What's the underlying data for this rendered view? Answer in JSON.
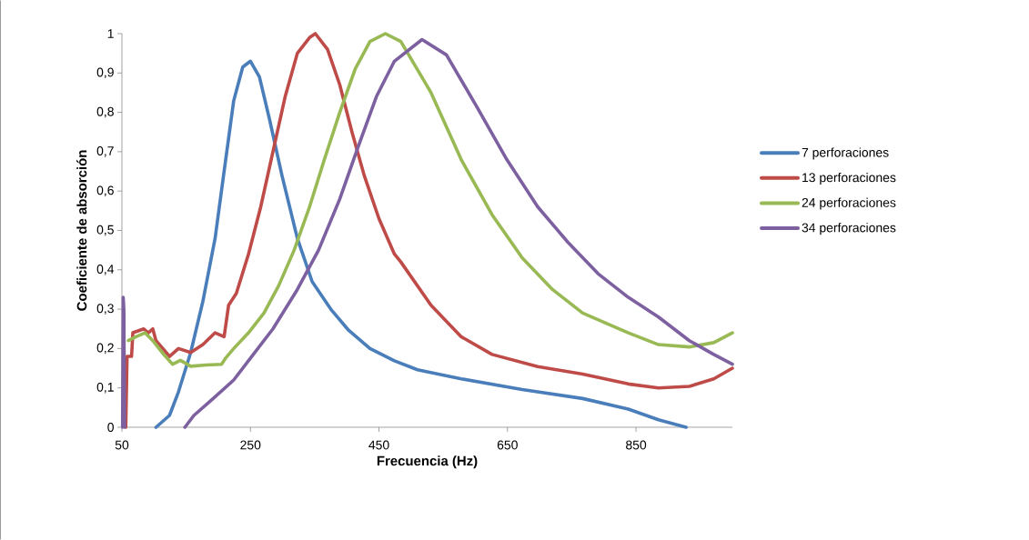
{
  "chart_data": {
    "type": "line",
    "xlabel": "Frecuencia (Hz)",
    "ylabel": "Coeficiente de absorción",
    "xlim": [
      50,
      1000
    ],
    "xticks": [
      50,
      250,
      450,
      650,
      850
    ],
    "ylim": [
      0,
      1
    ],
    "yticks": [
      0,
      {
        "value": 0.1,
        "label": "0,1"
      },
      {
        "value": 0.2,
        "label": "0,2"
      },
      {
        "value": 0.3,
        "label": "0,3"
      },
      {
        "value": 0.4,
        "label": "0,4"
      },
      {
        "value": 0.5,
        "label": "0,5"
      },
      {
        "value": 0.6,
        "label": "0,6"
      },
      {
        "value": 0.7,
        "label": "0,7"
      },
      {
        "value": 0.8,
        "label": "0,8"
      },
      {
        "value": 0.9,
        "label": "0,9"
      },
      1
    ],
    "grid": false,
    "legend": "right",
    "marker": "none",
    "line_style": "solid",
    "series": [
      {
        "name": "7 perforaciones",
        "color": "#4a7ebb",
        "x": [
          103,
          124,
          138,
          157,
          176,
          195,
          209,
          224,
          238,
          250,
          264,
          280,
          299,
          323,
          346,
          375,
          403,
          436,
          474,
          510,
          578,
          673,
          767,
          838,
          885,
          928
        ],
        "values": [
          0,
          0.03,
          0.09,
          0.19,
          0.32,
          0.48,
          0.65,
          0.83,
          0.915,
          0.93,
          0.89,
          0.78,
          0.64,
          0.48,
          0.37,
          0.3,
          0.246,
          0.2,
          0.169,
          0.146,
          0.123,
          0.096,
          0.073,
          0.046,
          0.019,
          0
        ]
      },
      {
        "name": "13 perforaciones",
        "color": "#be4b48",
        "x": [
          56,
          58,
          65,
          67,
          84,
          91,
          98,
          103,
          124,
          138,
          157,
          176,
          195,
          209,
          216,
          228,
          247,
          266,
          285,
          304,
          323,
          342,
          351,
          370,
          389,
          408,
          427,
          450,
          474,
          484,
          531,
          578,
          626,
          697,
          767,
          838,
          885,
          933,
          971,
          1000
        ],
        "values": [
          0,
          0.18,
          0.18,
          0.24,
          0.25,
          0.24,
          0.25,
          0.22,
          0.18,
          0.2,
          0.19,
          0.21,
          0.24,
          0.23,
          0.31,
          0.34,
          0.44,
          0.56,
          0.7,
          0.84,
          0.95,
          0.99,
          1,
          0.96,
          0.87,
          0.75,
          0.64,
          0.53,
          0.44,
          0.42,
          0.31,
          0.23,
          0.185,
          0.154,
          0.135,
          0.11,
          0.1,
          0.104,
          0.123,
          0.15
        ]
      },
      {
        "name": "24 perforaciones",
        "color": "#98b954",
        "x": [
          60,
          72,
          86,
          98,
          115,
          129,
          141,
          157,
          181,
          205,
          212,
          224,
          247,
          271,
          294,
          318,
          342,
          365,
          389,
          413,
          436,
          460,
          484,
          531,
          578,
          626,
          673,
          720,
          767,
          838,
          885,
          933,
          971,
          1000
        ],
        "values": [
          0.22,
          0.23,
          0.24,
          0.22,
          0.185,
          0.16,
          0.17,
          0.155,
          0.158,
          0.16,
          0.177,
          0.2,
          0.24,
          0.29,
          0.36,
          0.45,
          0.56,
          0.68,
          0.8,
          0.91,
          0.98,
          1,
          0.98,
          0.85,
          0.68,
          0.54,
          0.43,
          0.35,
          0.29,
          0.24,
          0.21,
          0.204,
          0.215,
          0.24
        ]
      },
      {
        "name": "34 perforaciones",
        "color": "#7d60a0",
        "x": [
          51,
          52,
          53,
          54,
          100,
          148,
          162,
          190,
          224,
          252,
          285,
          323,
          356,
          389,
          417,
          446,
          474,
          517,
          555,
          602,
          649,
          697,
          744,
          791,
          838,
          885,
          933,
          971,
          1000
        ],
        "values": [
          0,
          0.33,
          0.3,
          0,
          null,
          0,
          0.03,
          0.07,
          0.12,
          0.18,
          0.25,
          0.35,
          0.45,
          0.58,
          0.71,
          0.84,
          0.93,
          0.985,
          0.946,
          0.815,
          0.68,
          0.56,
          0.47,
          0.39,
          0.33,
          0.28,
          0.22,
          0.185,
          0.16
        ]
      }
    ]
  }
}
